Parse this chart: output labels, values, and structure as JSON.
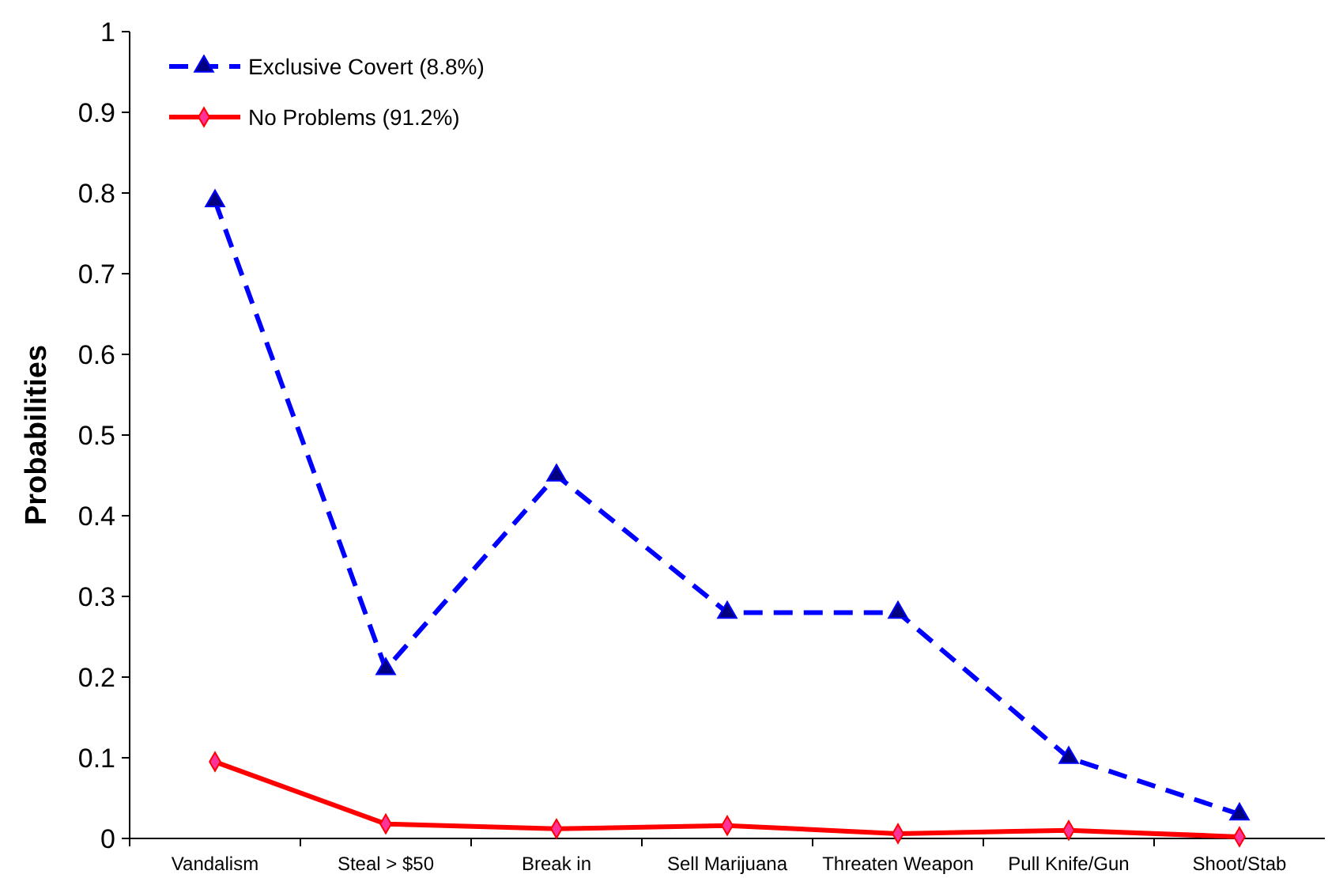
{
  "chart_data": {
    "type": "line",
    "ylabel": "Probabilities",
    "categories": [
      "Vandalism",
      "Steal > $50",
      "Break in",
      "Sell Marijuana",
      "Threaten Weapon",
      "Pull Knife/Gun",
      "Shoot/Stab"
    ],
    "series": [
      {
        "name": "Exclusive Covert (8.8%)",
        "color": "#0000ff",
        "marker": "triangle",
        "line_style": "dashed",
        "values": [
          0.79,
          0.21,
          0.45,
          0.28,
          0.28,
          0.1,
          0.03
        ]
      },
      {
        "name": "No Problems (91.2%)",
        "color": "#ff0000",
        "marker": "diamond",
        "line_style": "solid",
        "values": [
          0.095,
          0.018,
          0.012,
          0.016,
          0.006,
          0.01,
          0.002
        ]
      }
    ],
    "ylim": [
      0,
      1
    ],
    "yticks": [
      0,
      0.1,
      0.2,
      0.3,
      0.4,
      0.5,
      0.6,
      0.7,
      0.8,
      0.9,
      1
    ],
    "grid": false,
    "legend": "top left"
  }
}
